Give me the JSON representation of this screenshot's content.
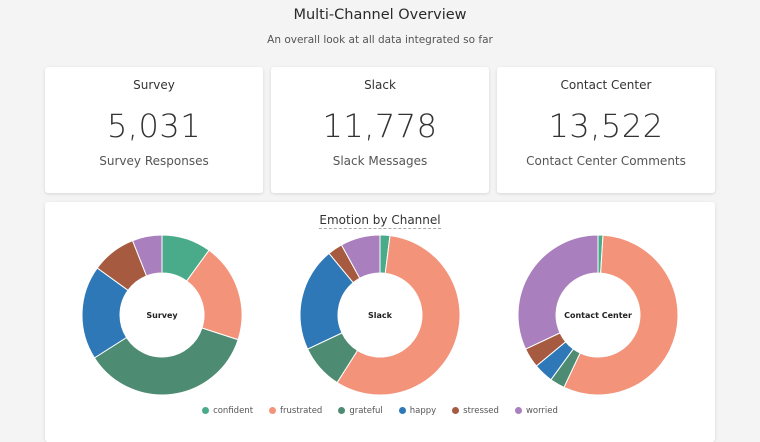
{
  "header": {
    "title": "Multi-Channel Overview",
    "subtitle": "An overall look at all data integrated so far"
  },
  "cards": [
    {
      "title": "Survey",
      "value": "5,031",
      "subtitle": "Survey Responses"
    },
    {
      "title": "Slack",
      "value": "11,778",
      "subtitle": "Slack Messages"
    },
    {
      "title": "Contact Center",
      "value": "13,522",
      "subtitle": "Contact Center Comments"
    }
  ],
  "panel": {
    "title": "Emotion by Channel"
  },
  "colors": {
    "confident": "#4aab8a",
    "frustrated": "#f2937a",
    "grateful": "#4d8c72",
    "happy": "#2e78b7",
    "stressed": "#a65a40",
    "worried": "#a97fbd"
  },
  "legend": [
    "confident",
    "frustrated",
    "grateful",
    "happy",
    "stressed",
    "worried"
  ],
  "chart_data": [
    {
      "type": "pie",
      "title": "Survey",
      "categories": [
        "confident",
        "frustrated",
        "grateful",
        "happy",
        "stressed",
        "worried"
      ],
      "values": [
        10,
        20,
        36,
        19,
        9,
        6
      ]
    },
    {
      "type": "pie",
      "title": "Slack",
      "categories": [
        "confident",
        "frustrated",
        "grateful",
        "happy",
        "stressed",
        "worried"
      ],
      "values": [
        2,
        57,
        9,
        21,
        3,
        8
      ]
    },
    {
      "type": "pie",
      "title": "Contact Center",
      "categories": [
        "confident",
        "frustrated",
        "grateful",
        "happy",
        "stressed",
        "worried"
      ],
      "values": [
        1,
        56,
        3,
        4,
        4,
        32
      ]
    }
  ]
}
